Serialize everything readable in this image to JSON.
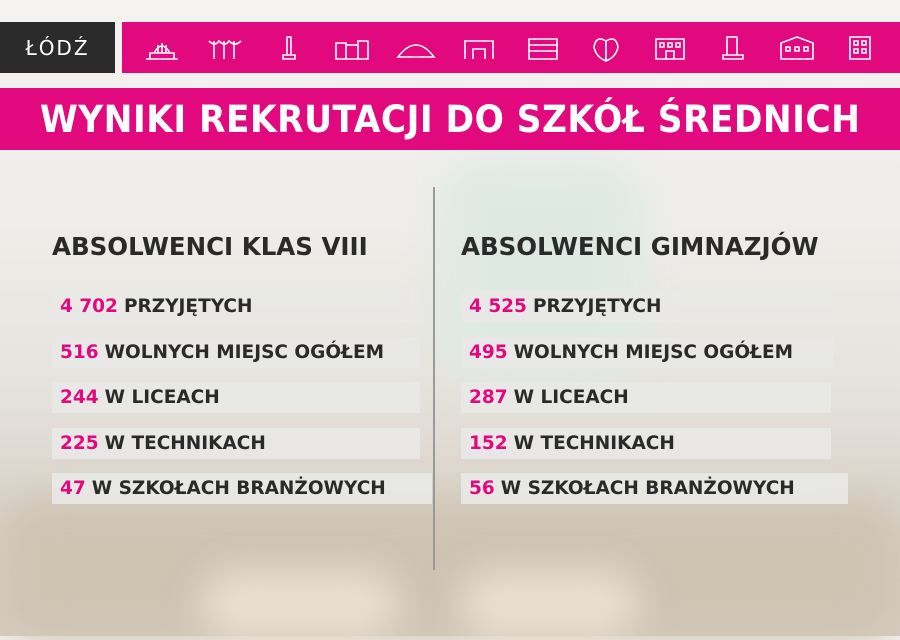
{
  "logo": {
    "text": "ŁÓDŹ"
  },
  "header_icons": [
    "railway-station-icon",
    "canopy-icon",
    "monument-icon",
    "factory-icon",
    "arena-icon",
    "gate-icon",
    "mall-icon",
    "heart-icon",
    "palace-icon",
    "tower-icon",
    "townhouse-icon",
    "office-building-icon"
  ],
  "accent_color": "#e2087e",
  "title": "WYNIKI REKRUTACJI DO SZKÓŁ ŚREDNICH",
  "columns": [
    {
      "heading": "ABSOLWENCI KLAS VIII",
      "rows": [
        {
          "num": "4 702",
          "label": "PRZYJĘTYCH"
        },
        {
          "num": "516",
          "label": "WOLNYCH MIEJSC OGÓŁEM"
        },
        {
          "num": "244",
          "label": "W LICEACH"
        },
        {
          "num": "225",
          "label": "W TECHNIKACH"
        },
        {
          "num": "47",
          "label": "W SZKOŁACH BRANŻOWYCH"
        }
      ]
    },
    {
      "heading": "ABSOLWENCI GIMNAZJÓW",
      "rows": [
        {
          "num": "4 525",
          "label": "PRZYJĘTYCH"
        },
        {
          "num": "495",
          "label": "WOLNYCH MIEJSC OGÓŁEM"
        },
        {
          "num": "287",
          "label": "W LICEACH"
        },
        {
          "num": "152",
          "label": "W TECHNIKACH"
        },
        {
          "num": "56",
          "label": "W SZKOŁACH BRANŻOWYCH"
        }
      ]
    }
  ]
}
